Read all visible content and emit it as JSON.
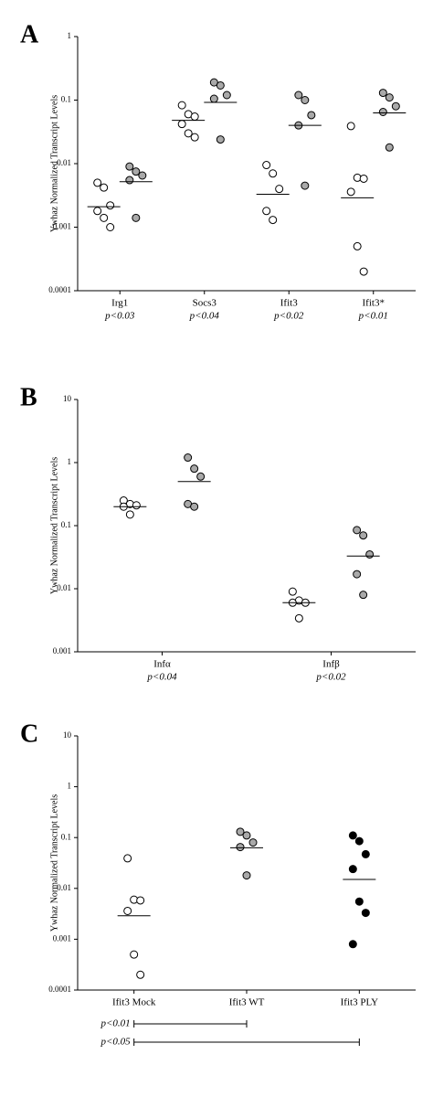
{
  "chart_data": [
    {
      "type": "dotplot",
      "panel_label": "A",
      "y_label": "Ywhaz Normalized Transcript Levels",
      "log_scale": true,
      "categories": [
        "Irg1",
        "Socs3",
        "Ifit3",
        "Ifit3*"
      ],
      "subtitles": [
        "p<0.03",
        "p<0.04",
        "p<0.02",
        "p<0.01"
      ],
      "ylim": [
        0.0001,
        1
      ],
      "yticks": [
        0.0001,
        0.001,
        0.01,
        0.1,
        1
      ],
      "series": [
        {
          "color": "#ffffff",
          "values": [
            [
              0.005,
              0.0042,
              0.0022,
              0.0018,
              0.0014,
              0.001
            ],
            [
              0.083,
              0.06,
              0.055,
              0.042,
              0.03,
              0.026
            ],
            [
              0.0095,
              0.007,
              0.004,
              0.0018,
              0.0013
            ],
            [
              0.039,
              0.006,
              0.0058,
              0.0036,
              0.0005,
              0.0002
            ]
          ],
          "medians": [
            0.0021,
            0.048,
            0.0033,
            0.0029
          ]
        },
        {
          "color": "#a9a9a9",
          "values": [
            [
              0.009,
              0.0075,
              0.0065,
              0.0055,
              0.0014
            ],
            [
              0.19,
              0.17,
              0.12,
              0.105,
              0.024
            ],
            [
              0.12,
              0.1,
              0.058,
              0.04,
              0.0045
            ],
            [
              0.13,
              0.11,
              0.08,
              0.065,
              0.018
            ]
          ],
          "medians": [
            0.0052,
            0.092,
            0.04,
            0.063
          ]
        }
      ]
    },
    {
      "type": "dotplot",
      "panel_label": "B",
      "y_label": "Ywhaz Normalized Transcript Levels",
      "log_scale": true,
      "categories": [
        "Infα",
        "Infβ"
      ],
      "subtitles": [
        "p<0.04",
        "p<0.02"
      ],
      "ylim": [
        0.001,
        10
      ],
      "yticks": [
        0.001,
        0.01,
        0.1,
        1,
        10
      ],
      "series": [
        {
          "color": "#ffffff",
          "values": [
            [
              0.25,
              0.22,
              0.21,
              0.2,
              0.15
            ],
            [
              0.009,
              0.0065,
              0.006,
              0.006,
              0.0034
            ]
          ],
          "medians": [
            0.2,
            0.006
          ]
        },
        {
          "color": "#a9a9a9",
          "values": [
            [
              1.2,
              0.8,
              0.6,
              0.22,
              0.2
            ],
            [
              0.085,
              0.07,
              0.035,
              0.017,
              0.008
            ]
          ],
          "medians": [
            0.5,
            0.033
          ]
        }
      ]
    },
    {
      "type": "dotplot",
      "panel_label": "C",
      "y_label": "Ywhaz Normalized Transcript Levels",
      "log_scale": true,
      "categories": [
        "Ifit3 Mock",
        "Ifit3 WT",
        "Ifit3 PLY"
      ],
      "ylim": [
        0.0001,
        10
      ],
      "yticks": [
        0.0001,
        0.001,
        0.01,
        0.1,
        1,
        10
      ],
      "series": [
        {
          "colors": [
            "#ffffff",
            "#a9a9a9",
            "#000000"
          ],
          "values": [
            [
              0.039,
              0.006,
              0.0058,
              0.0036,
              0.0005,
              0.0002
            ],
            [
              0.13,
              0.11,
              0.08,
              0.065,
              0.018
            ],
            [
              0.11,
              0.085,
              0.047,
              0.024,
              0.0055,
              0.0033,
              0.0008
            ]
          ],
          "medians": [
            0.0029,
            0.063,
            0.015
          ]
        }
      ],
      "comparisons": [
        {
          "label": "p<0.01",
          "from": 0,
          "to": 1
        },
        {
          "label": "p<0.05",
          "from": 0,
          "to": 2
        }
      ]
    }
  ]
}
